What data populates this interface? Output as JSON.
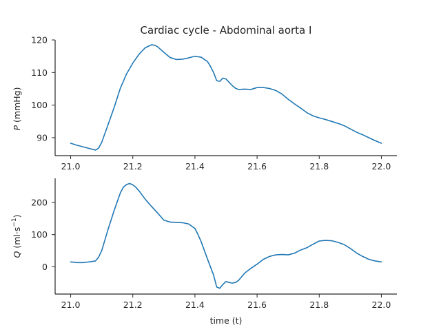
{
  "chart_data": [
    {
      "type": "line",
      "title": "Cardiac cycle - Abdominal aorta I",
      "xlabel": "",
      "ylabel_var": "P",
      "ylabel_unit": " (mmHg)",
      "xlim": [
        20.95,
        22.05
      ],
      "ylim": [
        84.5,
        120
      ],
      "xticks": [
        21.0,
        21.2,
        21.4,
        21.6,
        21.8,
        22.0
      ],
      "xtick_labels": [
        "21.0",
        "21.2",
        "21.4",
        "21.6",
        "21.8",
        "22.0"
      ],
      "yticks": [
        90,
        100,
        110,
        120
      ],
      "ytick_labels": [
        "90",
        "100",
        "110",
        "120"
      ],
      "grid": false,
      "color": "#1f77b4",
      "series": [
        {
          "x": [
            21.0,
            21.02,
            21.04,
            21.06,
            21.08,
            21.09,
            21.1,
            21.12,
            21.14,
            21.16,
            21.18,
            21.2,
            21.22,
            21.24,
            21.26,
            21.27,
            21.28,
            21.3,
            21.32,
            21.34,
            21.36,
            21.38,
            21.4,
            21.42,
            21.44,
            21.45,
            21.46,
            21.47,
            21.48,
            21.49,
            21.5,
            21.51,
            21.52,
            21.53,
            21.54,
            21.56,
            21.58,
            21.6,
            21.62,
            21.64,
            21.66,
            21.68,
            21.7,
            21.72,
            21.74,
            21.76,
            21.78,
            21.8,
            21.82,
            21.84,
            21.86,
            21.88,
            21.9,
            21.92,
            21.94,
            21.96,
            21.98,
            22.0
          ],
          "y": [
            88.3,
            87.7,
            87.2,
            86.7,
            86.2,
            86.8,
            88.6,
            93.9,
            99.3,
            105.2,
            109.6,
            112.9,
            115.6,
            117.6,
            118.5,
            118.4,
            117.9,
            116.2,
            114.6,
            114.0,
            114.1,
            114.5,
            115.0,
            114.7,
            113.4,
            111.9,
            110.0,
            107.5,
            107.3,
            108.3,
            108.0,
            107.0,
            106.0,
            105.2,
            104.8,
            104.9,
            104.8,
            105.4,
            105.4,
            105.1,
            104.5,
            103.4,
            101.8,
            100.4,
            99.1,
            97.7,
            96.7,
            96.1,
            95.6,
            95.0,
            94.4,
            93.7,
            92.7,
            91.7,
            90.9,
            90.0,
            89.1,
            88.3
          ]
        }
      ]
    },
    {
      "type": "line",
      "title": "",
      "xlabel": "time (t)",
      "ylabel_var": "Q",
      "ylabel_unit": " (ml·s",
      "ylabel_exp": "−1",
      "ylabel_close": ")",
      "xlim": [
        20.95,
        22.05
      ],
      "ylim": [
        -85,
        275
      ],
      "xticks": [
        21.0,
        21.2,
        21.4,
        21.6,
        21.8,
        22.0
      ],
      "xtick_labels": [
        "21.0",
        "21.2",
        "21.4",
        "21.6",
        "21.8",
        "22.0"
      ],
      "yticks": [
        0,
        100,
        200
      ],
      "ytick_labels": [
        "0",
        "100",
        "200"
      ],
      "grid": false,
      "color": "#1f77b4",
      "series": [
        {
          "x": [
            21.0,
            21.02,
            21.04,
            21.06,
            21.08,
            21.09,
            21.1,
            21.12,
            21.14,
            21.16,
            21.17,
            21.18,
            21.19,
            21.2,
            21.21,
            21.22,
            21.24,
            21.26,
            21.28,
            21.3,
            21.32,
            21.34,
            21.36,
            21.38,
            21.4,
            21.41,
            21.42,
            21.44,
            21.46,
            21.47,
            21.48,
            21.49,
            21.5,
            21.51,
            21.52,
            21.53,
            21.54,
            21.56,
            21.58,
            21.6,
            21.62,
            21.64,
            21.66,
            21.68,
            21.7,
            21.72,
            21.74,
            21.76,
            21.78,
            21.8,
            21.82,
            21.84,
            21.86,
            21.88,
            21.9,
            21.92,
            21.94,
            21.96,
            21.98,
            22.0
          ],
          "y": [
            15,
            13,
            13,
            15,
            18,
            30,
            50,
            115,
            175,
            230,
            248,
            256,
            259,
            255,
            247,
            236,
            210,
            188,
            167,
            145,
            139,
            138,
            137,
            133,
            119,
            100,
            78,
            25,
            -26,
            -63,
            -67,
            -55,
            -46,
            -49,
            -51,
            -49,
            -43,
            -20,
            -5,
            8,
            23,
            32,
            37,
            38,
            37,
            42,
            52,
            59,
            70,
            80,
            82,
            81,
            76,
            69,
            57,
            43,
            32,
            23,
            18,
            15
          ]
        }
      ]
    }
  ]
}
